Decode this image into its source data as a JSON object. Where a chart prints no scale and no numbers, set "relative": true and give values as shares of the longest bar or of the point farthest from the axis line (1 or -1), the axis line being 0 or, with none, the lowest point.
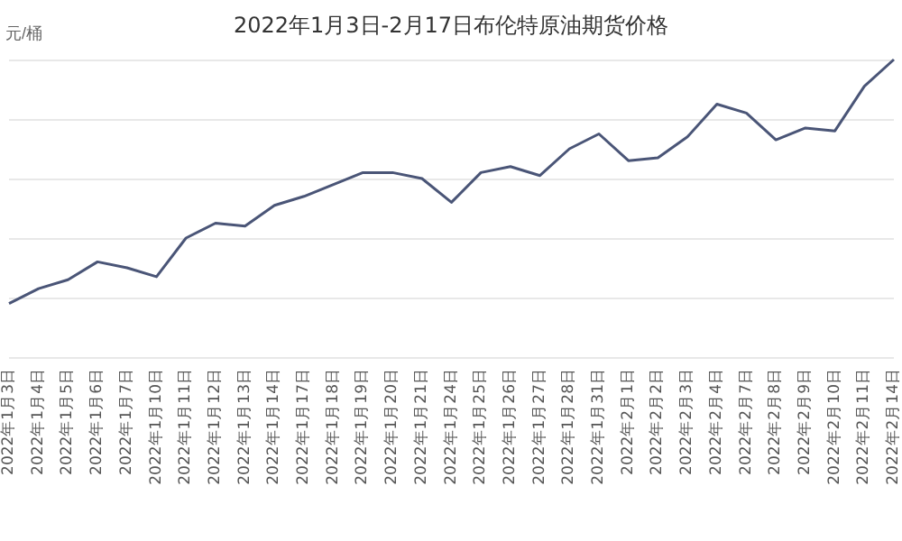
{
  "chart_data": {
    "type": "line",
    "title": "2022年1月3日-2月17日布伦特原油期货价格",
    "ylabel": "元/桶",
    "relative": true,
    "grid": "y",
    "marker": "none",
    "line_style": "solid",
    "categories": [
      "2022年1月3日",
      "2022年1月4日",
      "2022年1月5日",
      "2022年1月6日",
      "2022年1月7日",
      "2022年1月10日",
      "2022年1月11日",
      "2022年1月12日",
      "2022年1月13日",
      "2022年1月14日",
      "2022年1月17日",
      "2022年1月18日",
      "2022年1月19日",
      "2022年1月20日",
      "2022年1月21日",
      "2022年1月24日",
      "2022年1月25日",
      "2022年1月26日",
      "2022年1月27日",
      "2022年1月28日",
      "2022年1月31日",
      "2022年2月1日",
      "2022年2月2日",
      "2022年2月3日",
      "2022年2月4日",
      "2022年2月7日",
      "2022年2月8日",
      "2022年2月9日",
      "2022年2月10日",
      "2022年2月11日",
      "2022年2月14日"
    ],
    "series": [
      {
        "color": "#4a5577",
        "values": [
          0.18,
          0.23,
          0.26,
          0.32,
          0.3,
          0.27,
          0.4,
          0.45,
          0.44,
          0.51,
          0.54,
          0.58,
          0.62,
          0.62,
          0.6,
          0.52,
          0.62,
          0.64,
          0.61,
          0.7,
          0.75,
          0.66,
          0.67,
          0.74,
          0.85,
          0.82,
          0.73,
          0.77,
          0.76,
          0.91,
          1
        ]
      }
    ]
  }
}
